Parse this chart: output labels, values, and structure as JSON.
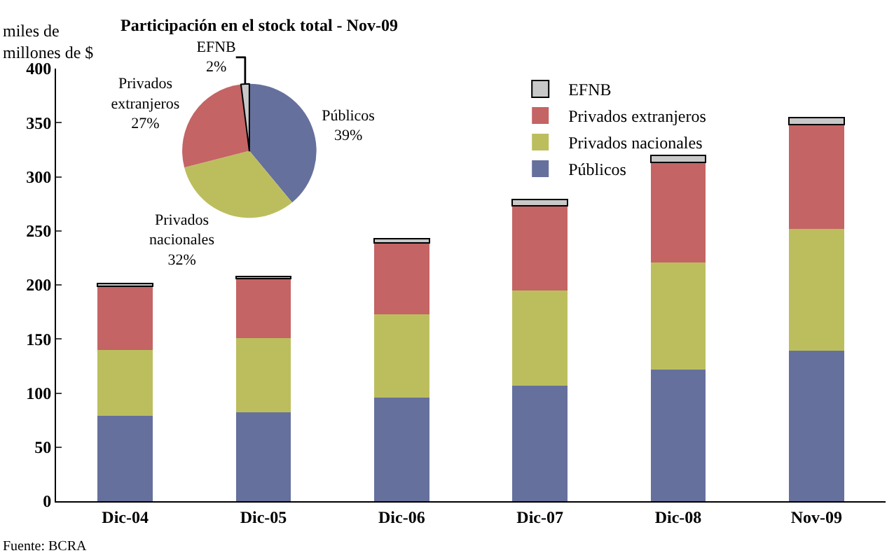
{
  "chart_data": [
    {
      "type": "bar",
      "stacked": true,
      "ylabel": "miles de millones de $",
      "categories": [
        "Dic-04",
        "Dic-05",
        "Dic-06",
        "Dic-07",
        "Dic-08",
        "Nov-09"
      ],
      "series": [
        {
          "name": "Públicos",
          "color": "#66709c",
          "values": [
            79,
            82,
            96,
            107,
            122,
            139
          ]
        },
        {
          "name": "Privados nacionales",
          "color": "#bcbe5e",
          "values": [
            61,
            69,
            77,
            88,
            99,
            113
          ]
        },
        {
          "name": "Privados extranjeros",
          "color": "#c46464",
          "values": [
            59,
            55,
            66,
            78,
            92,
            96
          ]
        },
        {
          "name": "EFNB",
          "color": "#c8c8c8",
          "values": [
            2,
            2,
            4,
            6,
            7,
            7
          ]
        }
      ],
      "ylim": [
        0,
        400
      ],
      "yticks": [
        0,
        50,
        100,
        150,
        200,
        250,
        300,
        350,
        400
      ],
      "legend": "top right",
      "annotations": [
        "Fuente: BCRA"
      ]
    },
    {
      "type": "pie",
      "title": "Participación en el stock total - Nov-09",
      "categories": [
        "Públicos",
        "Privados nacionales",
        "Privados extranjeros",
        "EFNB"
      ],
      "values": [
        39,
        32,
        27,
        2
      ],
      "colors": [
        "#66709c",
        "#bcbe5e",
        "#c46464",
        "#c8c8c8"
      ],
      "value_labels": [
        "39%",
        "32%",
        "27%",
        "2%"
      ]
    }
  ]
}
